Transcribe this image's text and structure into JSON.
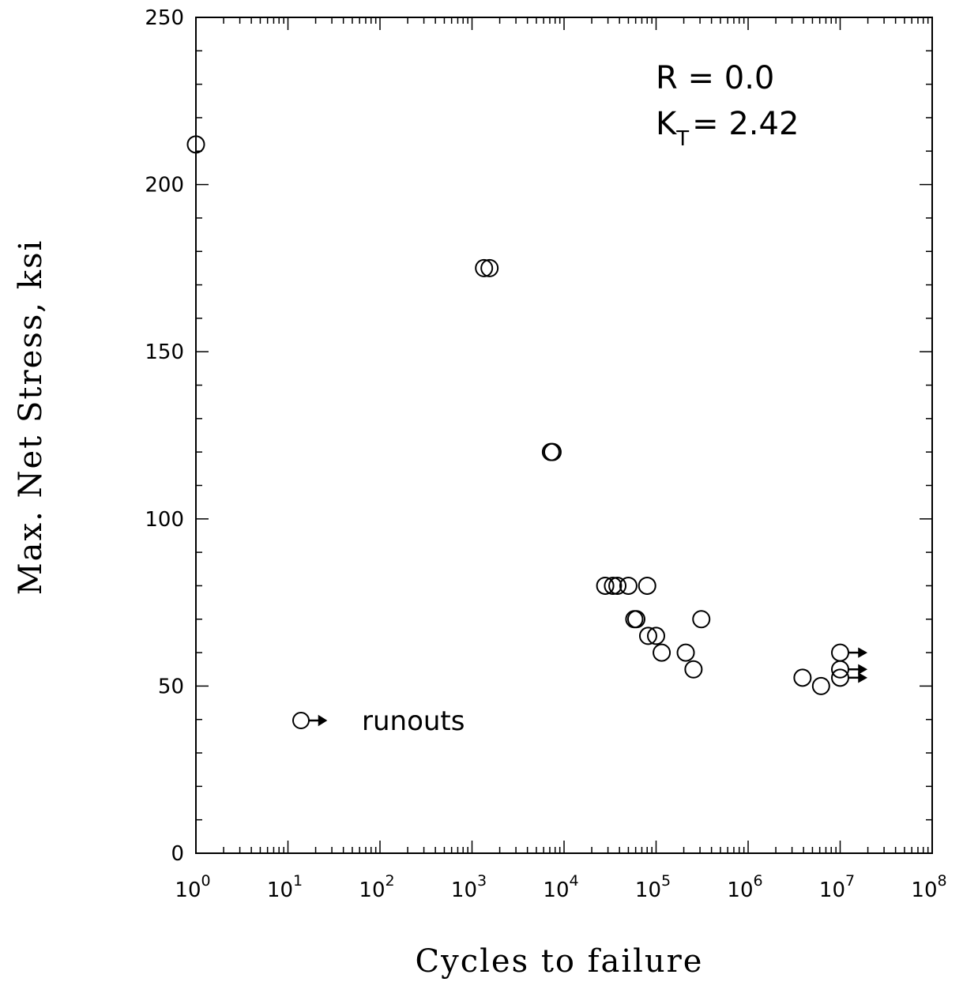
{
  "chart_data": {
    "type": "scatter",
    "xlabel": "Cycles to failure",
    "ylabel": "Max. Net Stress, ksi",
    "x_scale": "log",
    "xlim": [
      1,
      100000000
    ],
    "ylim": [
      0,
      250
    ],
    "x_major_ticks": [
      {
        "base": "10",
        "exp": "0"
      },
      {
        "base": "10",
        "exp": "1"
      },
      {
        "base": "10",
        "exp": "2"
      },
      {
        "base": "10",
        "exp": "3"
      },
      {
        "base": "10",
        "exp": "4"
      },
      {
        "base": "10",
        "exp": "5"
      },
      {
        "base": "10",
        "exp": "6"
      },
      {
        "base": "10",
        "exp": "7"
      },
      {
        "base": "10",
        "exp": "8"
      }
    ],
    "y_ticks": [
      "0",
      "50",
      "100",
      "150",
      "200",
      "250"
    ],
    "grid": false,
    "annotations": {
      "r_line": "R  =  0.0",
      "kt_prefix": "K",
      "kt_sub": "T",
      "kt_suffix": "=  2.42"
    },
    "legend": {
      "label": "runouts",
      "placement": "lower-left",
      "marker": "circle-with-arrow"
    },
    "points": [
      {
        "x": 1,
        "y": 212,
        "runout": false
      },
      {
        "x": 1350,
        "y": 175,
        "runout": false
      },
      {
        "x": 1550,
        "y": 175,
        "runout": false
      },
      {
        "x": 7200,
        "y": 120,
        "runout": false
      },
      {
        "x": 7500,
        "y": 120,
        "runout": false
      },
      {
        "x": 28000,
        "y": 80,
        "runout": false
      },
      {
        "x": 34000,
        "y": 80,
        "runout": false
      },
      {
        "x": 38000,
        "y": 80,
        "runout": false
      },
      {
        "x": 50000,
        "y": 80,
        "runout": false
      },
      {
        "x": 80000,
        "y": 80,
        "runout": false
      },
      {
        "x": 58000,
        "y": 70,
        "runout": false
      },
      {
        "x": 61000,
        "y": 70,
        "runout": false
      },
      {
        "x": 82000,
        "y": 65,
        "runout": false
      },
      {
        "x": 100000,
        "y": 65,
        "runout": false
      },
      {
        "x": 115000,
        "y": 60,
        "runout": false
      },
      {
        "x": 210000,
        "y": 60,
        "runout": false
      },
      {
        "x": 255000,
        "y": 55,
        "runout": false
      },
      {
        "x": 310000,
        "y": 70,
        "runout": false
      },
      {
        "x": 3900000,
        "y": 52.5,
        "runout": false
      },
      {
        "x": 6200000,
        "y": 50,
        "runout": false
      },
      {
        "x": 10000000,
        "y": 60,
        "runout": true
      },
      {
        "x": 10000000,
        "y": 55,
        "runout": true
      },
      {
        "x": 10000000,
        "y": 52.5,
        "runout": true
      }
    ]
  }
}
